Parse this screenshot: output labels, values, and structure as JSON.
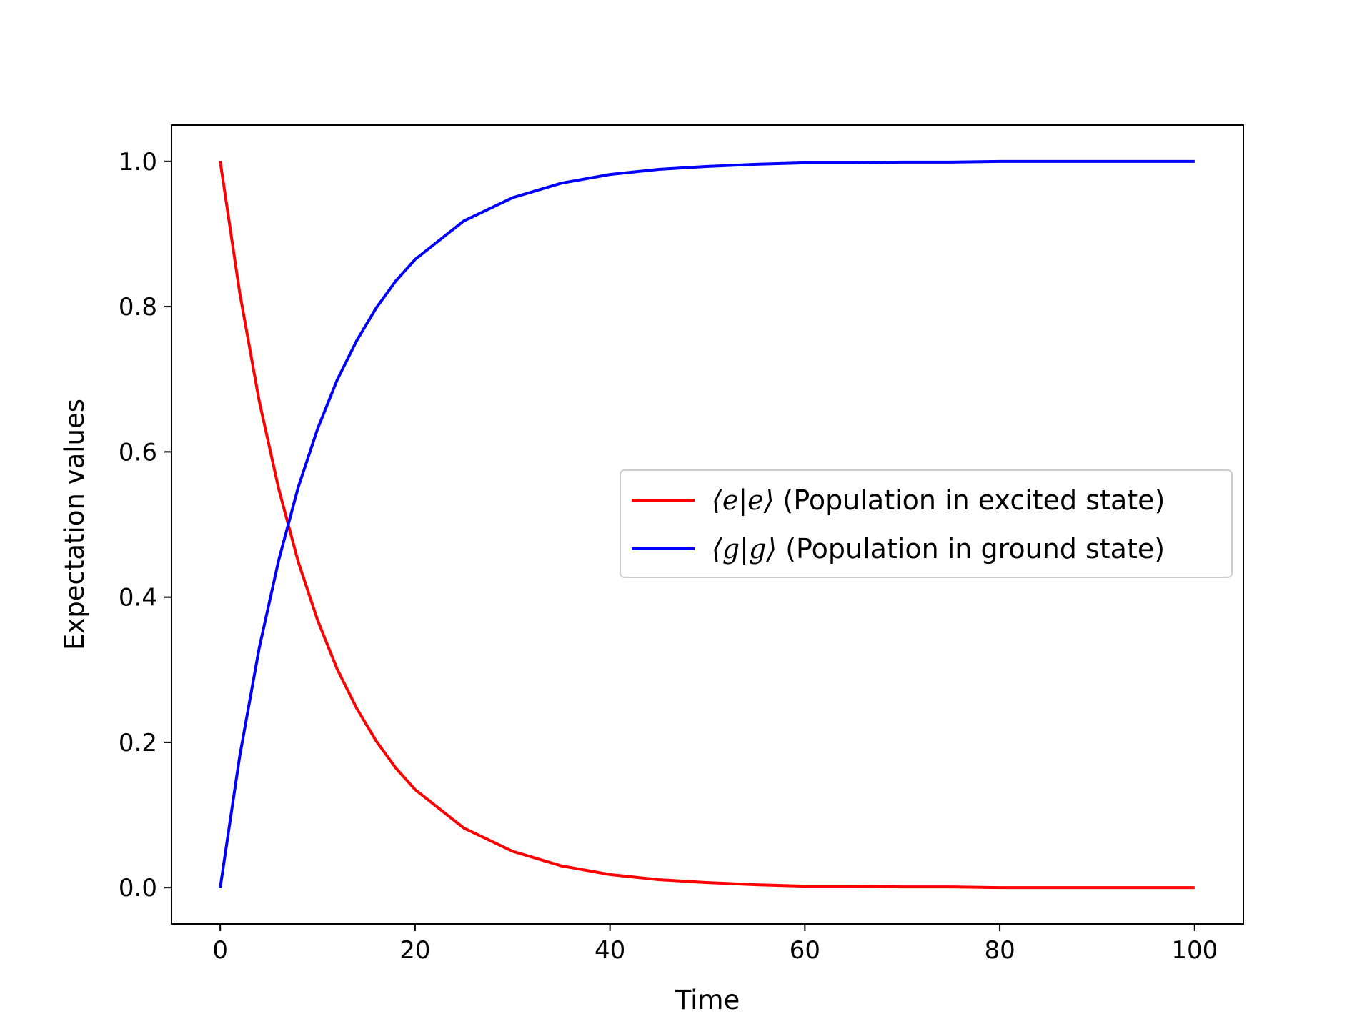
{
  "chart_data": {
    "type": "line",
    "title": "",
    "xlabel": "Time",
    "ylabel": "Expectation values",
    "xlim": [
      -5,
      105
    ],
    "ylim": [
      -0.05,
      1.05
    ],
    "xticks": [
      0,
      20,
      40,
      60,
      80,
      100
    ],
    "xtick_labels": [
      "0",
      "20",
      "40",
      "60",
      "80",
      "100"
    ],
    "yticks": [
      0.0,
      0.2,
      0.4,
      0.6,
      0.8,
      1.0
    ],
    "ytick_labels": [
      "0.0",
      "0.2",
      "0.4",
      "0.6",
      "0.8",
      "1.0"
    ],
    "grid": false,
    "legend_position": "center-right",
    "x": [
      0,
      2,
      4,
      6,
      8,
      10,
      12,
      14,
      16,
      18,
      20,
      25,
      30,
      35,
      40,
      45,
      50,
      55,
      60,
      65,
      70,
      75,
      80,
      85,
      90,
      95,
      100
    ],
    "series": [
      {
        "name": "⟨e|e⟩ (Population in excited state)",
        "name_math": "⟨e|e⟩",
        "name_text": " (Population in excited state)",
        "color": "#ff0000",
        "values": [
          1.0,
          0.819,
          0.67,
          0.549,
          0.449,
          0.368,
          0.301,
          0.247,
          0.202,
          0.165,
          0.135,
          0.082,
          0.05,
          0.03,
          0.018,
          0.011,
          0.007,
          0.004,
          0.002,
          0.002,
          0.001,
          0.001,
          0.0,
          0.0,
          0.0,
          0.0,
          0.0
        ]
      },
      {
        "name": "⟨g|g⟩ (Population in ground state)",
        "name_math": "⟨g|g⟩",
        "name_text": " (Population in ground state)",
        "color": "#0000ff",
        "values": [
          0.0,
          0.181,
          0.33,
          0.451,
          0.551,
          0.632,
          0.699,
          0.753,
          0.798,
          0.835,
          0.865,
          0.918,
          0.95,
          0.97,
          0.982,
          0.989,
          0.993,
          0.996,
          0.998,
          0.998,
          0.999,
          0.999,
          1.0,
          1.0,
          1.0,
          1.0,
          1.0
        ]
      }
    ]
  }
}
